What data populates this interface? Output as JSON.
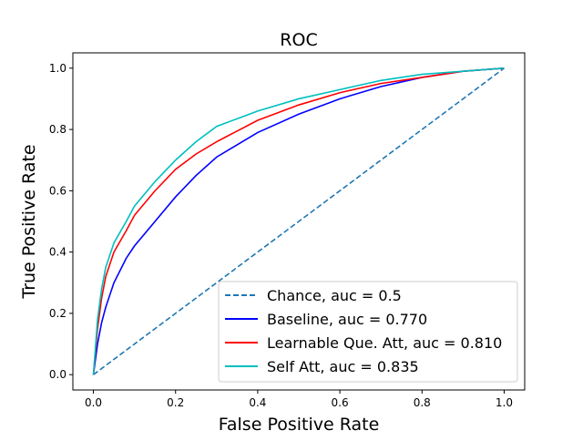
{
  "chart_data": {
    "type": "line",
    "title": "ROC",
    "xlabel": "False Positive Rate",
    "ylabel": "True Positive Rate",
    "xlim": [
      -0.05,
      1.05
    ],
    "ylim": [
      -0.05,
      1.05
    ],
    "xticks": [
      "0.0",
      "0.2",
      "0.4",
      "0.6",
      "0.8",
      "1.0"
    ],
    "yticks": [
      "0.0",
      "0.2",
      "0.4",
      "0.6",
      "0.8",
      "1.0"
    ],
    "grid": false,
    "legend_position": "lower-right",
    "series": [
      {
        "name": "Chance, auc = 0.5",
        "color": "#1f77b4",
        "dashed": true,
        "x": [
          0,
          1
        ],
        "y": [
          0,
          1
        ]
      },
      {
        "name": "Baseline, auc = 0.770",
        "color": "#0000ff",
        "dashed": false,
        "x": [
          0,
          0.01,
          0.02,
          0.03,
          0.05,
          0.08,
          0.1,
          0.15,
          0.2,
          0.25,
          0.3,
          0.4,
          0.5,
          0.6,
          0.7,
          0.8,
          0.9,
          1
        ],
        "y": [
          0,
          0.1,
          0.17,
          0.22,
          0.3,
          0.38,
          0.42,
          0.5,
          0.58,
          0.65,
          0.71,
          0.79,
          0.85,
          0.9,
          0.94,
          0.97,
          0.99,
          1
        ]
      },
      {
        "name": "Learnable Que. Att, auc = 0.810",
        "color": "#ff0000",
        "dashed": false,
        "x": [
          0,
          0.01,
          0.02,
          0.03,
          0.05,
          0.08,
          0.1,
          0.15,
          0.2,
          0.25,
          0.3,
          0.4,
          0.5,
          0.6,
          0.7,
          0.8,
          0.9,
          1
        ],
        "y": [
          0,
          0.15,
          0.25,
          0.32,
          0.4,
          0.47,
          0.52,
          0.6,
          0.67,
          0.72,
          0.76,
          0.83,
          0.88,
          0.92,
          0.95,
          0.97,
          0.99,
          1
        ]
      },
      {
        "name": "Self Att, auc = 0.835",
        "color": "#00bfbf",
        "dashed": false,
        "x": [
          0,
          0.01,
          0.02,
          0.03,
          0.05,
          0.08,
          0.1,
          0.15,
          0.2,
          0.25,
          0.3,
          0.4,
          0.5,
          0.6,
          0.7,
          0.8,
          0.9,
          1
        ],
        "y": [
          0,
          0.18,
          0.28,
          0.35,
          0.43,
          0.5,
          0.55,
          0.63,
          0.7,
          0.76,
          0.81,
          0.86,
          0.9,
          0.93,
          0.96,
          0.98,
          0.99,
          1
        ]
      }
    ]
  }
}
